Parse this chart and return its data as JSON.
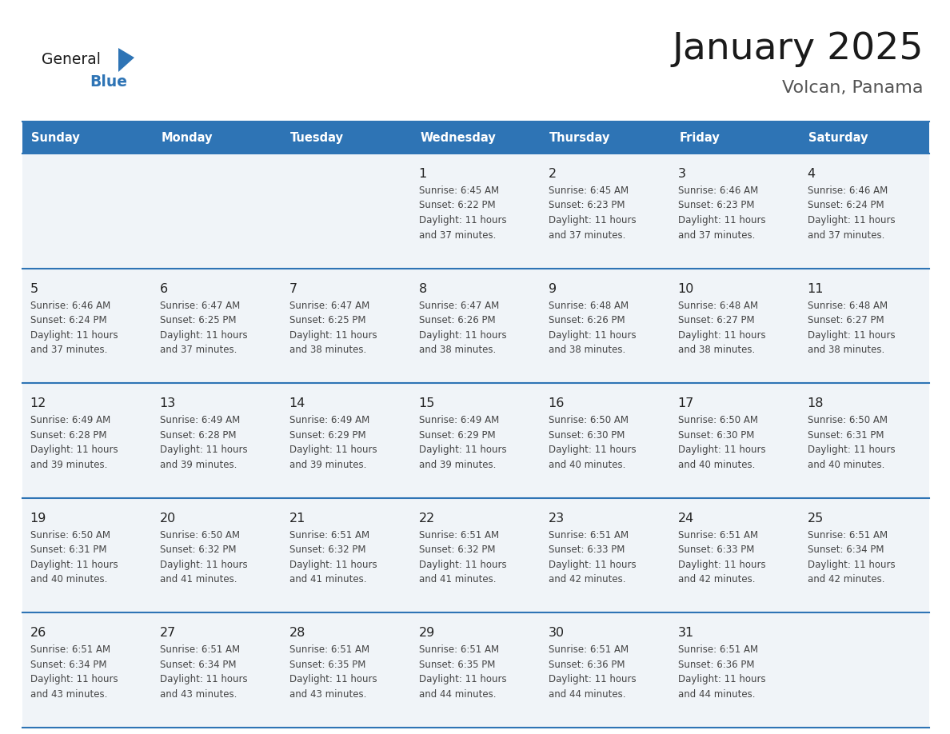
{
  "title": "January 2025",
  "subtitle": "Volcan, Panama",
  "days_of_week": [
    "Sunday",
    "Monday",
    "Tuesday",
    "Wednesday",
    "Thursday",
    "Friday",
    "Saturday"
  ],
  "header_bg": "#2E74B5",
  "header_text_color": "#FFFFFF",
  "row_bg": "#F0F4F8",
  "cell_border_color": "#2E74B5",
  "title_color": "#1A1A1A",
  "subtitle_color": "#555555",
  "day_number_color": "#222222",
  "info_color": "#444444",
  "logo_general_color": "#1A1A1A",
  "logo_blue_color": "#2E74B5",
  "logo_triangle_color": "#2E74B5",
  "calendar": [
    [
      {
        "day": 0,
        "sunrise": "",
        "sunset": "",
        "daylight": ""
      },
      {
        "day": 0,
        "sunrise": "",
        "sunset": "",
        "daylight": ""
      },
      {
        "day": 0,
        "sunrise": "",
        "sunset": "",
        "daylight": ""
      },
      {
        "day": 1,
        "sunrise": "6:45 AM",
        "sunset": "6:22 PM",
        "daylight": "11 hours and 37 minutes."
      },
      {
        "day": 2,
        "sunrise": "6:45 AM",
        "sunset": "6:23 PM",
        "daylight": "11 hours and 37 minutes."
      },
      {
        "day": 3,
        "sunrise": "6:46 AM",
        "sunset": "6:23 PM",
        "daylight": "11 hours and 37 minutes."
      },
      {
        "day": 4,
        "sunrise": "6:46 AM",
        "sunset": "6:24 PM",
        "daylight": "11 hours and 37 minutes."
      }
    ],
    [
      {
        "day": 5,
        "sunrise": "6:46 AM",
        "sunset": "6:24 PM",
        "daylight": "11 hours and 37 minutes."
      },
      {
        "day": 6,
        "sunrise": "6:47 AM",
        "sunset": "6:25 PM",
        "daylight": "11 hours and 37 minutes."
      },
      {
        "day": 7,
        "sunrise": "6:47 AM",
        "sunset": "6:25 PM",
        "daylight": "11 hours and 38 minutes."
      },
      {
        "day": 8,
        "sunrise": "6:47 AM",
        "sunset": "6:26 PM",
        "daylight": "11 hours and 38 minutes."
      },
      {
        "day": 9,
        "sunrise": "6:48 AM",
        "sunset": "6:26 PM",
        "daylight": "11 hours and 38 minutes."
      },
      {
        "day": 10,
        "sunrise": "6:48 AM",
        "sunset": "6:27 PM",
        "daylight": "11 hours and 38 minutes."
      },
      {
        "day": 11,
        "sunrise": "6:48 AM",
        "sunset": "6:27 PM",
        "daylight": "11 hours and 38 minutes."
      }
    ],
    [
      {
        "day": 12,
        "sunrise": "6:49 AM",
        "sunset": "6:28 PM",
        "daylight": "11 hours and 39 minutes."
      },
      {
        "day": 13,
        "sunrise": "6:49 AM",
        "sunset": "6:28 PM",
        "daylight": "11 hours and 39 minutes."
      },
      {
        "day": 14,
        "sunrise": "6:49 AM",
        "sunset": "6:29 PM",
        "daylight": "11 hours and 39 minutes."
      },
      {
        "day": 15,
        "sunrise": "6:49 AM",
        "sunset": "6:29 PM",
        "daylight": "11 hours and 39 minutes."
      },
      {
        "day": 16,
        "sunrise": "6:50 AM",
        "sunset": "6:30 PM",
        "daylight": "11 hours and 40 minutes."
      },
      {
        "day": 17,
        "sunrise": "6:50 AM",
        "sunset": "6:30 PM",
        "daylight": "11 hours and 40 minutes."
      },
      {
        "day": 18,
        "sunrise": "6:50 AM",
        "sunset": "6:31 PM",
        "daylight": "11 hours and 40 minutes."
      }
    ],
    [
      {
        "day": 19,
        "sunrise": "6:50 AM",
        "sunset": "6:31 PM",
        "daylight": "11 hours and 40 minutes."
      },
      {
        "day": 20,
        "sunrise": "6:50 AM",
        "sunset": "6:32 PM",
        "daylight": "11 hours and 41 minutes."
      },
      {
        "day": 21,
        "sunrise": "6:51 AM",
        "sunset": "6:32 PM",
        "daylight": "11 hours and 41 minutes."
      },
      {
        "day": 22,
        "sunrise": "6:51 AM",
        "sunset": "6:32 PM",
        "daylight": "11 hours and 41 minutes."
      },
      {
        "day": 23,
        "sunrise": "6:51 AM",
        "sunset": "6:33 PM",
        "daylight": "11 hours and 42 minutes."
      },
      {
        "day": 24,
        "sunrise": "6:51 AM",
        "sunset": "6:33 PM",
        "daylight": "11 hours and 42 minutes."
      },
      {
        "day": 25,
        "sunrise": "6:51 AM",
        "sunset": "6:34 PM",
        "daylight": "11 hours and 42 minutes."
      }
    ],
    [
      {
        "day": 26,
        "sunrise": "6:51 AM",
        "sunset": "6:34 PM",
        "daylight": "11 hours and 43 minutes."
      },
      {
        "day": 27,
        "sunrise": "6:51 AM",
        "sunset": "6:34 PM",
        "daylight": "11 hours and 43 minutes."
      },
      {
        "day": 28,
        "sunrise": "6:51 AM",
        "sunset": "6:35 PM",
        "daylight": "11 hours and 43 minutes."
      },
      {
        "day": 29,
        "sunrise": "6:51 AM",
        "sunset": "6:35 PM",
        "daylight": "11 hours and 44 minutes."
      },
      {
        "day": 30,
        "sunrise": "6:51 AM",
        "sunset": "6:36 PM",
        "daylight": "11 hours and 44 minutes."
      },
      {
        "day": 31,
        "sunrise": "6:51 AM",
        "sunset": "6:36 PM",
        "daylight": "11 hours and 44 minutes."
      },
      {
        "day": 0,
        "sunrise": "",
        "sunset": "",
        "daylight": ""
      }
    ]
  ]
}
